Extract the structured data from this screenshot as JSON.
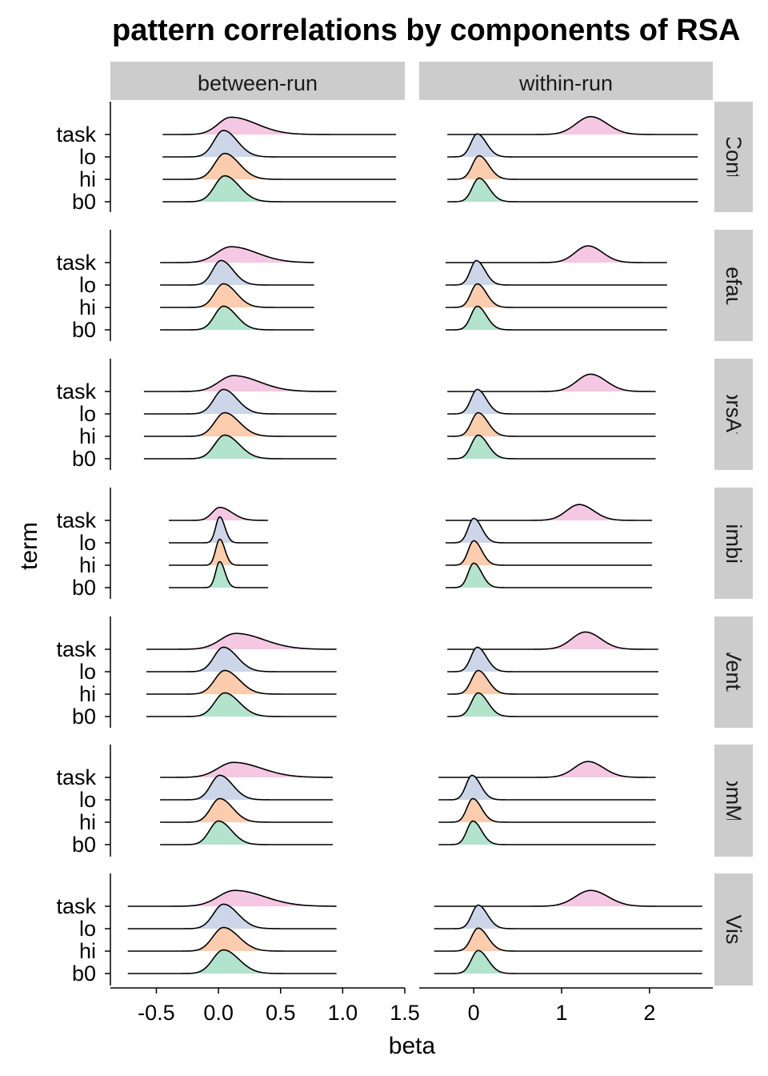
{
  "chart_data": {
    "type": "ridgeline",
    "title": "pattern correlations by components of RSA",
    "xlabel": "beta",
    "ylabel": "term",
    "columns": [
      "between-run",
      "within-run"
    ],
    "rows": [
      "Cont",
      "Default",
      "DorsAttn",
      "Limbic",
      "SalVentAttn",
      "SomMot",
      "Vis"
    ],
    "terms": [
      "task",
      "lo",
      "hi",
      "b0"
    ],
    "term_colors": {
      "task": "#f4c7e3",
      "lo": "#cdd6e9",
      "hi": "#fbccad",
      "b0": "#b3e2cd"
    },
    "x_axes": [
      {
        "column": "between-run",
        "range": [
          -0.87,
          1.5
        ],
        "ticks": [
          -0.5,
          0.0,
          0.5,
          1.0,
          1.5
        ],
        "tick_labels": [
          "-0.5",
          "0.0",
          "0.5",
          "1.0",
          "1.5"
        ]
      },
      {
        "column": "within-run",
        "range": [
          -0.62,
          2.72
        ],
        "ticks": [
          0,
          1,
          2
        ],
        "tick_labels": [
          "0",
          "1",
          "2"
        ]
      }
    ],
    "panels": [
      {
        "row": "Cont",
        "column": "between-run",
        "densities": [
          {
            "term": "task",
            "center": 0.1,
            "sd": 0.13,
            "height": 0.6,
            "skew": 0.6,
            "range": [
              -0.45,
              1.43
            ]
          },
          {
            "term": "lo",
            "center": 0.04,
            "sd": 0.085,
            "height": 0.92,
            "skew": 0.3,
            "range": [
              -0.45,
              1.43
            ]
          },
          {
            "term": "hi",
            "center": 0.05,
            "sd": 0.09,
            "height": 0.9,
            "skew": 0.3,
            "range": [
              -0.45,
              1.43
            ]
          },
          {
            "term": "b0",
            "center": 0.05,
            "sd": 0.09,
            "height": 0.9,
            "skew": 0.3,
            "range": [
              -0.45,
              1.43
            ]
          }
        ]
      },
      {
        "row": "Cont",
        "column": "within-run",
        "densities": [
          {
            "term": "task",
            "center": 1.33,
            "sd": 0.17,
            "height": 0.62,
            "skew": 0.1,
            "range": [
              -0.3,
              2.55
            ]
          },
          {
            "term": "lo",
            "center": 0.04,
            "sd": 0.08,
            "height": 0.8,
            "skew": 0.3,
            "range": [
              -0.3,
              2.55
            ]
          },
          {
            "term": "hi",
            "center": 0.06,
            "sd": 0.085,
            "height": 0.82,
            "skew": 0.3,
            "range": [
              -0.3,
              2.55
            ]
          },
          {
            "term": "b0",
            "center": 0.06,
            "sd": 0.085,
            "height": 0.82,
            "skew": 0.3,
            "range": [
              -0.3,
              2.55
            ]
          }
        ]
      },
      {
        "row": "Default",
        "column": "between-run",
        "densities": [
          {
            "term": "task",
            "center": 0.1,
            "sd": 0.14,
            "height": 0.55,
            "skew": 0.5,
            "range": [
              -0.47,
              0.77
            ]
          },
          {
            "term": "lo",
            "center": 0.02,
            "sd": 0.075,
            "height": 0.85,
            "skew": 0.3,
            "range": [
              -0.47,
              0.77
            ]
          },
          {
            "term": "hi",
            "center": 0.04,
            "sd": 0.08,
            "height": 0.82,
            "skew": 0.3,
            "range": [
              -0.47,
              0.77
            ]
          },
          {
            "term": "b0",
            "center": 0.04,
            "sd": 0.08,
            "height": 0.82,
            "skew": 0.3,
            "range": [
              -0.47,
              0.77
            ]
          }
        ]
      },
      {
        "row": "Default",
        "column": "within-run",
        "densities": [
          {
            "term": "task",
            "center": 1.3,
            "sd": 0.15,
            "height": 0.58,
            "skew": 0.1,
            "range": [
              -0.32,
              2.2
            ]
          },
          {
            "term": "lo",
            "center": 0.03,
            "sd": 0.075,
            "height": 0.85,
            "skew": 0.3,
            "range": [
              -0.32,
              2.2
            ]
          },
          {
            "term": "hi",
            "center": 0.04,
            "sd": 0.08,
            "height": 0.82,
            "skew": 0.3,
            "range": [
              -0.32,
              2.2
            ]
          },
          {
            "term": "b0",
            "center": 0.04,
            "sd": 0.08,
            "height": 0.82,
            "skew": 0.3,
            "range": [
              -0.32,
              2.2
            ]
          }
        ]
      },
      {
        "row": "DorsAttn",
        "column": "between-run",
        "densities": [
          {
            "term": "task",
            "center": 0.12,
            "sd": 0.14,
            "height": 0.55,
            "skew": 0.5,
            "range": [
              -0.6,
              0.95
            ]
          },
          {
            "term": "lo",
            "center": 0.04,
            "sd": 0.085,
            "height": 0.85,
            "skew": 0.3,
            "range": [
              -0.6,
              0.95
            ]
          },
          {
            "term": "hi",
            "center": 0.05,
            "sd": 0.09,
            "height": 0.82,
            "skew": 0.3,
            "range": [
              -0.6,
              0.95
            ]
          },
          {
            "term": "b0",
            "center": 0.05,
            "sd": 0.09,
            "height": 0.82,
            "skew": 0.3,
            "range": [
              -0.6,
              0.95
            ]
          }
        ]
      },
      {
        "row": "DorsAttn",
        "column": "within-run",
        "densities": [
          {
            "term": "task",
            "center": 1.33,
            "sd": 0.16,
            "height": 0.6,
            "skew": 0.1,
            "range": [
              -0.3,
              2.07
            ]
          },
          {
            "term": "lo",
            "center": 0.04,
            "sd": 0.08,
            "height": 0.85,
            "skew": 0.3,
            "range": [
              -0.3,
              2.07
            ]
          },
          {
            "term": "hi",
            "center": 0.05,
            "sd": 0.085,
            "height": 0.82,
            "skew": 0.3,
            "range": [
              -0.3,
              2.07
            ]
          },
          {
            "term": "b0",
            "center": 0.05,
            "sd": 0.085,
            "height": 0.82,
            "skew": 0.3,
            "range": [
              -0.3,
              2.07
            ]
          }
        ]
      },
      {
        "row": "Limbic",
        "column": "between-run",
        "densities": [
          {
            "term": "task",
            "center": 0.01,
            "sd": 0.07,
            "height": 0.45,
            "skew": 0.4,
            "range": [
              -0.4,
              0.4
            ]
          },
          {
            "term": "lo",
            "center": 0.01,
            "sd": 0.035,
            "height": 0.9,
            "skew": 0.2,
            "range": [
              -0.4,
              0.4
            ]
          },
          {
            "term": "hi",
            "center": 0.01,
            "sd": 0.035,
            "height": 0.9,
            "skew": 0.2,
            "range": [
              -0.4,
              0.4
            ]
          },
          {
            "term": "b0",
            "center": 0.01,
            "sd": 0.035,
            "height": 0.9,
            "skew": 0.2,
            "range": [
              -0.4,
              0.4
            ]
          }
        ]
      },
      {
        "row": "Limbic",
        "column": "within-run",
        "densities": [
          {
            "term": "task",
            "center": 1.2,
            "sd": 0.15,
            "height": 0.55,
            "skew": 0.1,
            "range": [
              -0.32,
              2.03
            ]
          },
          {
            "term": "lo",
            "center": 0.0,
            "sd": 0.07,
            "height": 0.85,
            "skew": 0.3,
            "range": [
              -0.32,
              2.03
            ]
          },
          {
            "term": "hi",
            "center": 0.0,
            "sd": 0.07,
            "height": 0.85,
            "skew": 0.3,
            "range": [
              -0.32,
              2.03
            ]
          },
          {
            "term": "b0",
            "center": 0.0,
            "sd": 0.07,
            "height": 0.85,
            "skew": 0.3,
            "range": [
              -0.32,
              2.03
            ]
          }
        ]
      },
      {
        "row": "SalVentAttn",
        "column": "between-run",
        "densities": [
          {
            "term": "task",
            "center": 0.14,
            "sd": 0.15,
            "height": 0.55,
            "skew": 0.5,
            "range": [
              -0.58,
              0.95
            ]
          },
          {
            "term": "lo",
            "center": 0.04,
            "sd": 0.085,
            "height": 0.85,
            "skew": 0.3,
            "range": [
              -0.58,
              0.95
            ]
          },
          {
            "term": "hi",
            "center": 0.05,
            "sd": 0.09,
            "height": 0.82,
            "skew": 0.3,
            "range": [
              -0.58,
              0.95
            ]
          },
          {
            "term": "b0",
            "center": 0.05,
            "sd": 0.09,
            "height": 0.82,
            "skew": 0.3,
            "range": [
              -0.58,
              0.95
            ]
          }
        ]
      },
      {
        "row": "SalVentAttn",
        "column": "within-run",
        "densities": [
          {
            "term": "task",
            "center": 1.27,
            "sd": 0.16,
            "height": 0.6,
            "skew": 0.1,
            "range": [
              -0.3,
              2.1
            ]
          },
          {
            "term": "lo",
            "center": 0.04,
            "sd": 0.08,
            "height": 0.85,
            "skew": 0.3,
            "range": [
              -0.3,
              2.1
            ]
          },
          {
            "term": "hi",
            "center": 0.05,
            "sd": 0.085,
            "height": 0.82,
            "skew": 0.3,
            "range": [
              -0.3,
              2.1
            ]
          },
          {
            "term": "b0",
            "center": 0.05,
            "sd": 0.085,
            "height": 0.82,
            "skew": 0.3,
            "range": [
              -0.3,
              2.1
            ]
          }
        ]
      },
      {
        "row": "SomMot",
        "column": "between-run",
        "densities": [
          {
            "term": "task",
            "center": 0.12,
            "sd": 0.15,
            "height": 0.52,
            "skew": 0.5,
            "range": [
              -0.47,
              0.92
            ]
          },
          {
            "term": "lo",
            "center": 0.01,
            "sd": 0.08,
            "height": 0.85,
            "skew": 0.3,
            "range": [
              -0.47,
              0.92
            ]
          },
          {
            "term": "hi",
            "center": 0.01,
            "sd": 0.08,
            "height": 0.82,
            "skew": 0.3,
            "range": [
              -0.47,
              0.92
            ]
          },
          {
            "term": "b0",
            "center": 0.0,
            "sd": 0.08,
            "height": 0.82,
            "skew": 0.3,
            "range": [
              -0.47,
              0.92
            ]
          }
        ]
      },
      {
        "row": "SomMot",
        "column": "within-run",
        "densities": [
          {
            "term": "task",
            "center": 1.3,
            "sd": 0.16,
            "height": 0.55,
            "skew": 0.1,
            "range": [
              -0.4,
              2.07
            ]
          },
          {
            "term": "lo",
            "center": -0.02,
            "sd": 0.075,
            "height": 0.85,
            "skew": 0.3,
            "range": [
              -0.4,
              2.07
            ]
          },
          {
            "term": "hi",
            "center": -0.01,
            "sd": 0.075,
            "height": 0.82,
            "skew": 0.3,
            "range": [
              -0.4,
              2.07
            ]
          },
          {
            "term": "b0",
            "center": -0.01,
            "sd": 0.075,
            "height": 0.82,
            "skew": 0.3,
            "range": [
              -0.4,
              2.07
            ]
          }
        ]
      },
      {
        "row": "Vis",
        "column": "between-run",
        "densities": [
          {
            "term": "task",
            "center": 0.13,
            "sd": 0.16,
            "height": 0.55,
            "skew": 0.5,
            "range": [
              -0.73,
              0.95
            ]
          },
          {
            "term": "lo",
            "center": 0.04,
            "sd": 0.09,
            "height": 0.85,
            "skew": 0.3,
            "range": [
              -0.73,
              0.95
            ]
          },
          {
            "term": "hi",
            "center": 0.04,
            "sd": 0.095,
            "height": 0.82,
            "skew": 0.3,
            "range": [
              -0.73,
              0.95
            ]
          },
          {
            "term": "b0",
            "center": 0.04,
            "sd": 0.095,
            "height": 0.82,
            "skew": 0.3,
            "range": [
              -0.73,
              0.95
            ]
          }
        ]
      },
      {
        "row": "Vis",
        "column": "within-run",
        "densities": [
          {
            "term": "task",
            "center": 1.33,
            "sd": 0.18,
            "height": 0.55,
            "skew": 0.1,
            "range": [
              -0.45,
              2.6
            ]
          },
          {
            "term": "lo",
            "center": 0.05,
            "sd": 0.08,
            "height": 0.82,
            "skew": 0.3,
            "range": [
              -0.45,
              2.6
            ]
          },
          {
            "term": "hi",
            "center": 0.05,
            "sd": 0.085,
            "height": 0.8,
            "skew": 0.3,
            "range": [
              -0.45,
              2.6
            ]
          },
          {
            "term": "b0",
            "center": 0.05,
            "sd": 0.085,
            "height": 0.8,
            "skew": 0.3,
            "range": [
              -0.45,
              2.6
            ]
          }
        ]
      }
    ]
  }
}
